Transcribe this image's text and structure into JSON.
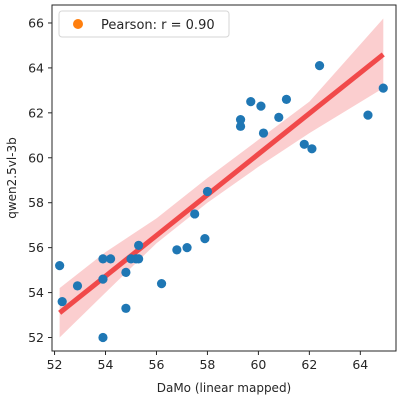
{
  "chart_data": {
    "type": "scatter",
    "xlabel": "DaMo (linear mapped)",
    "ylabel": "qwen2.5vl-3b",
    "xlim": [
      51.9,
      65.4
    ],
    "ylim": [
      51.4,
      66.8
    ],
    "x_ticks": [
      52,
      54,
      56,
      58,
      60,
      62,
      64
    ],
    "y_ticks": [
      52,
      54,
      56,
      58,
      60,
      62,
      64,
      66
    ],
    "grid": false,
    "legend": {
      "position": "top-left",
      "entries": [
        {
          "label": "Pearson: r = 0.90",
          "marker_color": "#ff7f0e"
        }
      ]
    },
    "colors": {
      "points": "#1f77b4",
      "fit_line": "#ef3b3b",
      "confidence_band": "#f7a6a8",
      "legend_marker": "#ff7f0e"
    },
    "points": {
      "x": [
        52.2,
        52.3,
        52.9,
        53.9,
        53.9,
        53.9,
        54.2,
        54.8,
        54.8,
        55.0,
        55.2,
        55.3,
        55.3,
        56.2,
        56.8,
        57.2,
        57.5,
        57.9,
        58.0,
        59.3,
        59.3,
        59.7,
        60.1,
        60.2,
        60.8,
        61.1,
        61.8,
        62.1,
        62.4,
        64.3,
        64.9
      ],
      "y": [
        55.2,
        53.6,
        54.3,
        55.5,
        54.6,
        52.0,
        55.5,
        53.3,
        54.9,
        55.5,
        55.5,
        56.1,
        55.5,
        54.4,
        55.9,
        56.0,
        57.5,
        56.4,
        58.5,
        61.7,
        61.4,
        62.5,
        62.3,
        61.1,
        61.8,
        62.6,
        60.6,
        60.4,
        64.1,
        61.9,
        63.1
      ]
    },
    "fit": {
      "x": [
        52.2,
        64.9
      ],
      "y": [
        53.1,
        64.6
      ]
    },
    "band": {
      "x": [
        52.2,
        54,
        56,
        58,
        60,
        62,
        64.9
      ],
      "lower": [
        52.0,
        54.0,
        56.2,
        58.0,
        59.6,
        61.1,
        63.1
      ],
      "upper": [
        54.2,
        55.8,
        57.3,
        59.1,
        60.8,
        62.5,
        66.2
      ]
    }
  }
}
